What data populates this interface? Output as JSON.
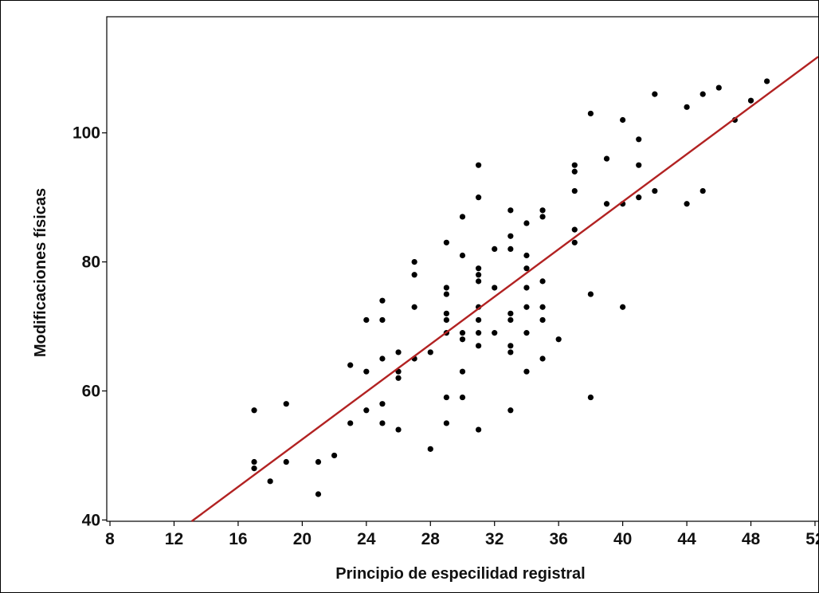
{
  "chart_data": {
    "type": "scatter",
    "title": "",
    "xlabel": "Principio de especilidad registral",
    "ylabel": "Modificaciones físicas",
    "xlim": [
      7.8,
      52.2
    ],
    "ylim": [
      39.8,
      118
    ],
    "xticks": [
      8,
      12,
      16,
      20,
      24,
      28,
      32,
      36,
      40,
      44,
      48,
      52
    ],
    "yticks": [
      40,
      60,
      80,
      100
    ],
    "grid": false,
    "legend": "none",
    "point_color": "#000000",
    "fit_line_color": "#b22222",
    "fit_line": {
      "type": "linear",
      "points": [
        [
          13.1,
          39.8
        ],
        [
          52.2,
          111.8
        ]
      ]
    },
    "points": [
      [
        17,
        57
      ],
      [
        17,
        49
      ],
      [
        17,
        48
      ],
      [
        18,
        46
      ],
      [
        19,
        58
      ],
      [
        19,
        49
      ],
      [
        21,
        49
      ],
      [
        21,
        44
      ],
      [
        22,
        50
      ],
      [
        23,
        64
      ],
      [
        23,
        55
      ],
      [
        24,
        71
      ],
      [
        24,
        63
      ],
      [
        24,
        57
      ],
      [
        25,
        74
      ],
      [
        25,
        71
      ],
      [
        25,
        65
      ],
      [
        25,
        58
      ],
      [
        25,
        55
      ],
      [
        26,
        66
      ],
      [
        26,
        63
      ],
      [
        26,
        62
      ],
      [
        26,
        54
      ],
      [
        27,
        80
      ],
      [
        27,
        78
      ],
      [
        27,
        73
      ],
      [
        27,
        65
      ],
      [
        28,
        66
      ],
      [
        28,
        51
      ],
      [
        29,
        83
      ],
      [
        29,
        76
      ],
      [
        29,
        75
      ],
      [
        29,
        72
      ],
      [
        29,
        71
      ],
      [
        29,
        69
      ],
      [
        29,
        59
      ],
      [
        29,
        55
      ],
      [
        30,
        87
      ],
      [
        30,
        81
      ],
      [
        30,
        69
      ],
      [
        30,
        68
      ],
      [
        30,
        63
      ],
      [
        30,
        59
      ],
      [
        31,
        95
      ],
      [
        31,
        90
      ],
      [
        31,
        79
      ],
      [
        31,
        78
      ],
      [
        31,
        77
      ],
      [
        31,
        73
      ],
      [
        31,
        71
      ],
      [
        31,
        69
      ],
      [
        31,
        67
      ],
      [
        31,
        54
      ],
      [
        32,
        82
      ],
      [
        32,
        76
      ],
      [
        32,
        69
      ],
      [
        33,
        88
      ],
      [
        33,
        84
      ],
      [
        33,
        82
      ],
      [
        33,
        72
      ],
      [
        33,
        71
      ],
      [
        33,
        67
      ],
      [
        33,
        66
      ],
      [
        33,
        57
      ],
      [
        34,
        86
      ],
      [
        34,
        81
      ],
      [
        34,
        79
      ],
      [
        34,
        76
      ],
      [
        34,
        73
      ],
      [
        34,
        69
      ],
      [
        34,
        63
      ],
      [
        35,
        88
      ],
      [
        35,
        87
      ],
      [
        35,
        77
      ],
      [
        35,
        73
      ],
      [
        35,
        71
      ],
      [
        35,
        65
      ],
      [
        36,
        68
      ],
      [
        37,
        95
      ],
      [
        37,
        94
      ],
      [
        37,
        91
      ],
      [
        37,
        85
      ],
      [
        37,
        83
      ],
      [
        38,
        103
      ],
      [
        38,
        75
      ],
      [
        38,
        59
      ],
      [
        39,
        96
      ],
      [
        39,
        89
      ],
      [
        40,
        102
      ],
      [
        40,
        89
      ],
      [
        40,
        73
      ],
      [
        41,
        99
      ],
      [
        41,
        95
      ],
      [
        41,
        90
      ],
      [
        42,
        106
      ],
      [
        42,
        91
      ],
      [
        44,
        104
      ],
      [
        44,
        89
      ],
      [
        45,
        106
      ],
      [
        45,
        91
      ],
      [
        46,
        107
      ],
      [
        47,
        102
      ],
      [
        48,
        105
      ],
      [
        49,
        108
      ]
    ]
  }
}
